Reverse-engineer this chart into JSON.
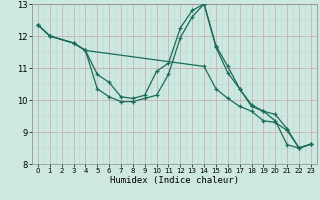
{
  "xlabel": "Humidex (Indice chaleur)",
  "xlim": [
    -0.5,
    23.5
  ],
  "ylim": [
    8,
    13
  ],
  "yticks": [
    8,
    9,
    10,
    11,
    12,
    13
  ],
  "xticks": [
    0,
    1,
    2,
    3,
    4,
    5,
    6,
    7,
    8,
    9,
    10,
    11,
    12,
    13,
    14,
    15,
    16,
    17,
    18,
    19,
    20,
    21,
    22,
    23
  ],
  "bg_color": "#cce8e0",
  "grid_major_color": "#c8a8a8",
  "grid_minor_color": "#b8d8d0",
  "line_color": "#1a6b5a",
  "lines": [
    {
      "x": [
        0,
        1,
        3,
        4,
        5,
        6,
        7,
        8,
        9,
        10,
        11,
        12,
        13,
        14,
        15,
        16,
        17,
        18,
        19,
        20,
        21,
        22,
        23
      ],
      "y": [
        12.35,
        12.0,
        11.78,
        11.55,
        10.35,
        10.1,
        9.95,
        9.95,
        10.05,
        10.15,
        10.8,
        11.95,
        12.6,
        13.0,
        11.7,
        11.05,
        10.35,
        9.8,
        9.65,
        9.35,
        8.6,
        8.5,
        8.62
      ]
    },
    {
      "x": [
        0,
        1,
        3,
        4,
        5,
        6,
        7,
        8,
        9,
        10,
        11,
        12,
        13,
        14,
        15,
        16,
        17,
        18,
        19,
        20,
        21,
        22,
        23
      ],
      "y": [
        12.35,
        12.0,
        11.78,
        11.55,
        10.8,
        10.55,
        10.1,
        10.05,
        10.15,
        10.9,
        11.15,
        12.25,
        12.8,
        13.0,
        11.65,
        10.85,
        10.35,
        9.85,
        9.65,
        9.55,
        9.1,
        8.5,
        8.62
      ]
    },
    {
      "x": [
        0,
        1,
        3,
        4,
        14,
        15,
        16,
        17,
        18,
        19,
        20,
        21,
        22,
        23
      ],
      "y": [
        12.35,
        12.0,
        11.78,
        11.55,
        11.05,
        10.35,
        10.05,
        9.8,
        9.65,
        9.35,
        9.3,
        9.05,
        8.5,
        8.62
      ]
    }
  ]
}
